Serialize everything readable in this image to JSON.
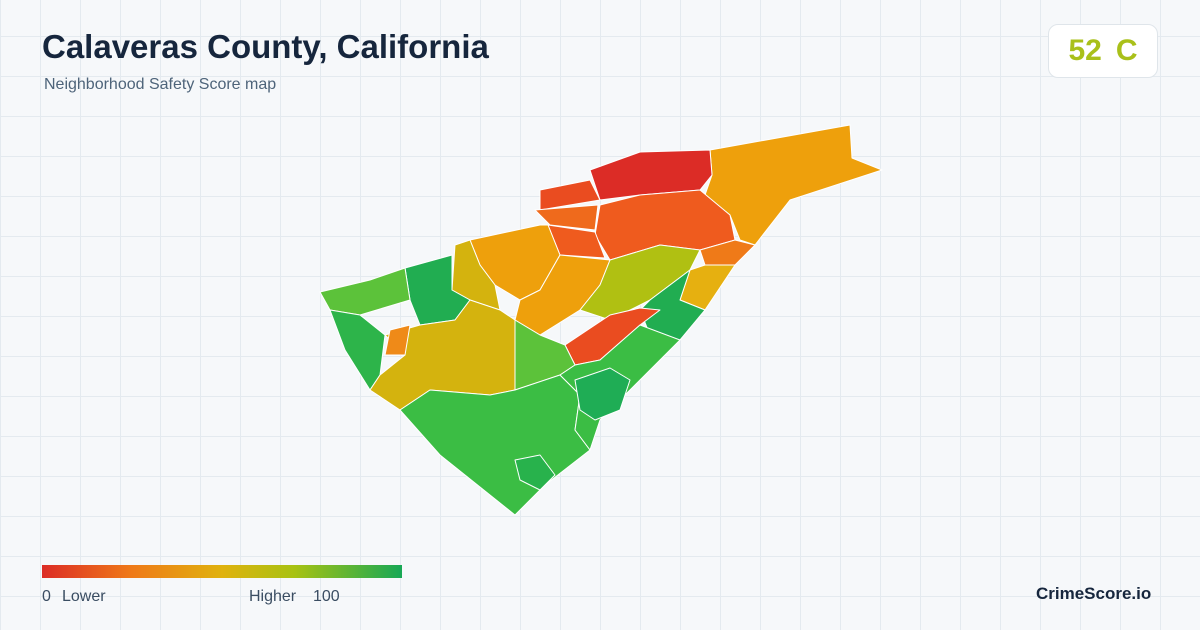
{
  "header": {
    "title": "Calaveras County, California",
    "subtitle": "Neighborhood Safety Score map"
  },
  "score": {
    "value": 52,
    "grade": "C"
  },
  "legend": {
    "min": 0,
    "min_label": "Lower",
    "max_label": "Higher",
    "max": 100
  },
  "footer": {
    "brand": "CrimeScore.io"
  }
}
